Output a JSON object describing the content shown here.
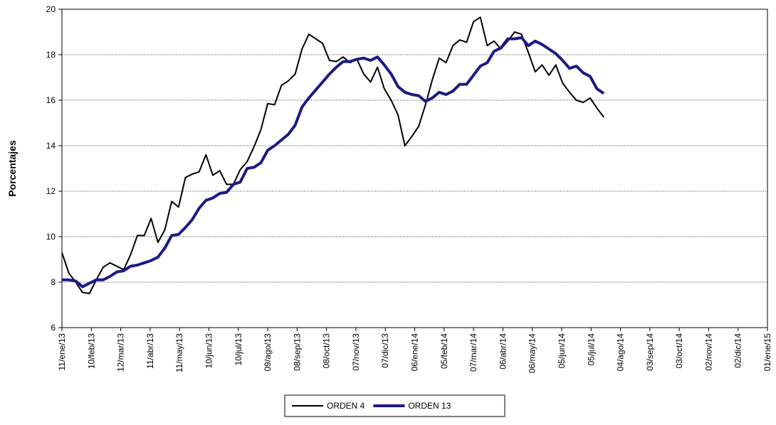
{
  "chart_data": {
    "type": "line",
    "y_label": "Porcentajes",
    "x": [
      "2013-01-11",
      "2013-01-18",
      "2013-01-25",
      "2013-02-01",
      "2013-02-08",
      "2013-02-15",
      "2013-02-22",
      "2013-03-01",
      "2013-03-08",
      "2013-03-15",
      "2013-03-22",
      "2013-03-29",
      "2013-04-05",
      "2013-04-12",
      "2013-04-19",
      "2013-04-26",
      "2013-05-03",
      "2013-05-10",
      "2013-05-17",
      "2013-05-24",
      "2013-05-31",
      "2013-06-07",
      "2013-06-14",
      "2013-06-21",
      "2013-06-28",
      "2013-07-05",
      "2013-07-12",
      "2013-07-19",
      "2013-07-26",
      "2013-08-02",
      "2013-08-09",
      "2013-08-16",
      "2013-08-23",
      "2013-08-30",
      "2013-09-06",
      "2013-09-13",
      "2013-09-20",
      "2013-09-27",
      "2013-10-04",
      "2013-10-11",
      "2013-10-18",
      "2013-10-25",
      "2013-11-01",
      "2013-11-08",
      "2013-11-15",
      "2013-11-22",
      "2013-11-29",
      "2013-12-06",
      "2013-12-13",
      "2013-12-20",
      "2013-12-27",
      "2014-01-03",
      "2014-01-10",
      "2014-01-17",
      "2014-01-24",
      "2014-01-31",
      "2014-02-07",
      "2014-02-14",
      "2014-02-21",
      "2014-02-28",
      "2014-03-07",
      "2014-03-14",
      "2014-03-21",
      "2014-03-28",
      "2014-04-04",
      "2014-04-11",
      "2014-04-18",
      "2014-04-25",
      "2014-05-02",
      "2014-05-09",
      "2014-05-16",
      "2014-05-23",
      "2014-05-30",
      "2014-06-06",
      "2014-06-13",
      "2014-06-20",
      "2014-06-27",
      "2014-07-04",
      "2014-07-11",
      "2014-07-18"
    ],
    "series": [
      {
        "name": "ORDEN 4",
        "color": "#000000",
        "values": [
          9.3,
          8.4,
          8.0,
          7.55,
          7.5,
          8.1,
          8.65,
          8.85,
          8.7,
          8.55,
          9.2,
          10.05,
          10.05,
          10.8,
          9.75,
          10.3,
          11.55,
          11.3,
          12.6,
          12.75,
          12.85,
          13.6,
          12.7,
          12.9,
          12.3,
          12.3,
          12.95,
          13.3,
          13.95,
          14.7,
          15.85,
          15.8,
          16.65,
          16.85,
          17.15,
          18.25,
          18.9,
          18.7,
          18.5,
          17.75,
          17.7,
          17.9,
          17.65,
          17.8,
          17.15,
          16.8,
          17.45,
          16.5,
          16.0,
          15.35,
          14.0,
          14.4,
          14.85,
          15.8,
          16.9,
          17.85,
          17.65,
          18.4,
          18.65,
          18.55,
          19.45,
          19.65,
          18.4,
          18.6,
          18.25,
          18.6,
          19.0,
          18.9,
          18.1,
          17.25,
          17.55,
          17.1,
          17.55,
          16.75,
          16.35,
          16.0,
          15.9,
          16.1,
          15.65,
          15.25
        ]
      },
      {
        "name": "ORDEN 13",
        "color": "#1c1a85",
        "values": [
          8.1,
          8.1,
          8.05,
          7.8,
          7.95,
          8.1,
          8.1,
          8.25,
          8.45,
          8.5,
          8.7,
          8.75,
          8.85,
          8.95,
          9.1,
          9.5,
          10.05,
          10.1,
          10.4,
          10.75,
          11.25,
          11.6,
          11.7,
          11.9,
          11.95,
          12.3,
          12.4,
          13.0,
          13.05,
          13.25,
          13.8,
          14.0,
          14.25,
          14.5,
          14.9,
          15.7,
          16.1,
          16.45,
          16.8,
          17.15,
          17.45,
          17.7,
          17.7,
          17.8,
          17.85,
          17.75,
          17.9,
          17.55,
          17.15,
          16.6,
          16.35,
          16.25,
          16.2,
          15.95,
          16.1,
          16.35,
          16.25,
          16.4,
          16.7,
          16.7,
          17.1,
          17.5,
          17.65,
          18.15,
          18.3,
          18.7,
          18.7,
          18.75,
          18.4,
          18.6,
          18.45,
          18.25,
          18.05,
          17.75,
          17.4,
          17.5,
          17.2,
          17.05,
          16.5,
          16.3
        ]
      }
    ],
    "xlim": [
      "2013-01-11",
      "2015-01-01"
    ],
    "xticks": [
      {
        "value": "2013-01-11",
        "label": "11/ene/13"
      },
      {
        "value": "2013-02-10",
        "label": "10/feb/13"
      },
      {
        "value": "2013-03-12",
        "label": "12/mar/13"
      },
      {
        "value": "2013-04-11",
        "label": "11/abr/13"
      },
      {
        "value": "2013-05-11",
        "label": "11/may/13"
      },
      {
        "value": "2013-06-10",
        "label": "10/jun/13"
      },
      {
        "value": "2013-07-10",
        "label": "10/jul/13"
      },
      {
        "value": "2013-08-09",
        "label": "09/ago/13"
      },
      {
        "value": "2013-09-08",
        "label": "08/sep/13"
      },
      {
        "value": "2013-10-08",
        "label": "08/oct/13"
      },
      {
        "value": "2013-11-07",
        "label": "07/nov/13"
      },
      {
        "value": "2013-12-07",
        "label": "07/dic/13"
      },
      {
        "value": "2014-01-06",
        "label": "06/ene/14"
      },
      {
        "value": "2014-02-05",
        "label": "05/feb/14"
      },
      {
        "value": "2014-03-07",
        "label": "07/mar/14"
      },
      {
        "value": "2014-04-06",
        "label": "06/abr/14"
      },
      {
        "value": "2014-05-06",
        "label": "06/may/14"
      },
      {
        "value": "2014-06-05",
        "label": "05/jun/14"
      },
      {
        "value": "2014-07-05",
        "label": "05/jul/14"
      },
      {
        "value": "2014-08-04",
        "label": "04/ago/14"
      },
      {
        "value": "2014-09-03",
        "label": "03/sep/14"
      },
      {
        "value": "2014-10-03",
        "label": "03/oct/14"
      },
      {
        "value": "2014-11-02",
        "label": "02/nov/14"
      },
      {
        "value": "2014-12-02",
        "label": "02/dic/14"
      },
      {
        "value": "2015-01-01",
        "label": "01/ene/15"
      }
    ],
    "ylim": [
      6,
      20
    ],
    "yticks": [
      6,
      8,
      10,
      12,
      14,
      16,
      18,
      20
    ],
    "grid": true,
    "legend": "bottom"
  }
}
